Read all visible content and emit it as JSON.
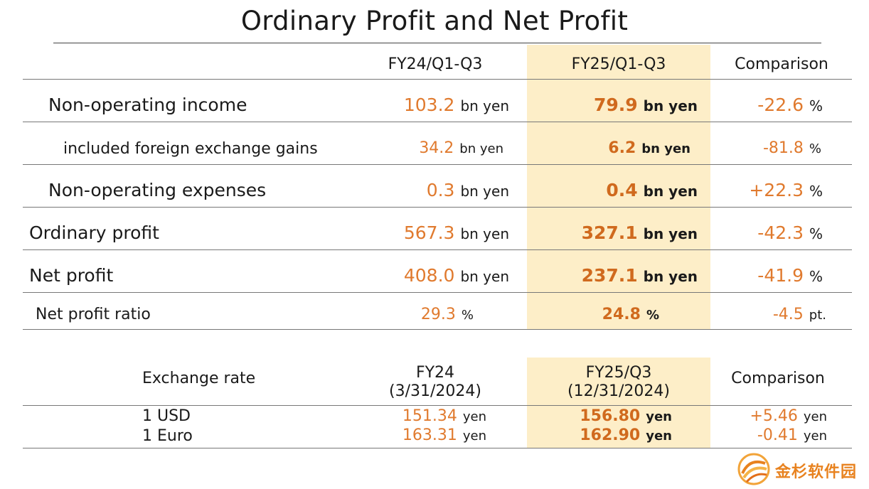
{
  "title": "Ordinary Profit and Net Profit",
  "profit_table": {
    "headers": [
      "FY24/Q1-Q3",
      "FY25/Q1-Q3",
      "Comparison"
    ],
    "rows": [
      {
        "label": "Non-operating income",
        "fy24": "103.2",
        "fy24_unit": "bn yen",
        "fy25": "79.9",
        "fy25_unit": "bn yen",
        "cmp": "-22.6",
        "cmp_unit": "%"
      },
      {
        "label": "included foreign exchange gains",
        "fy24": "34.2",
        "fy24_unit": "bn yen",
        "fy25": "6.2",
        "fy25_unit": "bn yen",
        "cmp": "-81.8",
        "cmp_unit": "%"
      },
      {
        "label": "Non-operating expenses",
        "fy24": "0.3",
        "fy24_unit": "bn yen",
        "fy25": "0.4",
        "fy25_unit": "bn yen",
        "cmp": "+22.3",
        "cmp_unit": "%"
      },
      {
        "label": "Ordinary profit",
        "fy24": "567.3",
        "fy24_unit": "bn yen",
        "fy25": "327.1",
        "fy25_unit": "bn yen",
        "cmp": "-42.3",
        "cmp_unit": "%"
      },
      {
        "label": "Net profit",
        "fy24": "408.0",
        "fy24_unit": "bn yen",
        "fy25": "237.1",
        "fy25_unit": "bn yen",
        "cmp": "-41.9",
        "cmp_unit": "%"
      },
      {
        "label": "Net profit ratio",
        "fy24": "29.3",
        "fy24_unit": "%",
        "fy25": "24.8",
        "fy25_unit": "%",
        "cmp": "-4.5",
        "cmp_unit": "pt."
      }
    ]
  },
  "exchange_table": {
    "label_header": "Exchange rate",
    "fy24_header": "FY24",
    "fy24_date": "(3/31/2024)",
    "fy25_header": "FY25/Q3",
    "fy25_date": "(12/31/2024)",
    "cmp_header": "Comparison",
    "rows": [
      {
        "label": "1 USD",
        "fy24": "151.34",
        "fy24_unit": "yen",
        "fy25": "156.80",
        "fy25_unit": "yen",
        "cmp": "+5.46",
        "cmp_unit": "yen"
      },
      {
        "label": "1 Euro",
        "fy24": "163.31",
        "fy24_unit": "yen",
        "fy25": "162.90",
        "fy25_unit": "yen",
        "cmp": "-0.41",
        "cmp_unit": "yen"
      }
    ]
  },
  "watermark": {
    "text": "金杉软件园",
    "icon": "swirl-logo-icon"
  },
  "colors": {
    "value": "#e07a2e",
    "highlight": "#fdeec8"
  }
}
